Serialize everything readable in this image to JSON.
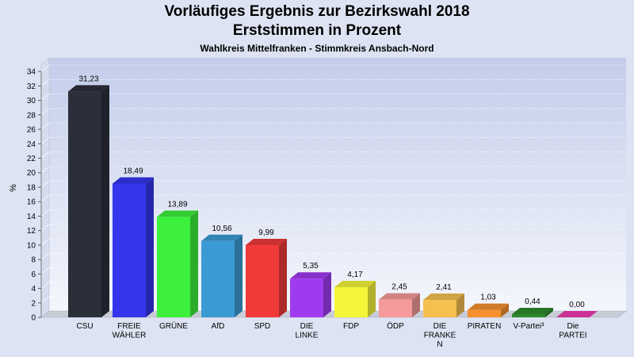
{
  "header": {
    "title_line1": "Vorläufiges Ergebnis zur Bezirkswahl 2018",
    "title_line2": "Erststimmen in Prozent",
    "subtitle": "Wahlkreis Mittelfranken - Stimmkreis Ansbach-Nord"
  },
  "chart_data": {
    "type": "bar",
    "title": "Vorläufiges Ergebnis zur Bezirkswahl 2018 Erststimmen in Prozent",
    "subtitle": "Wahlkreis Mittelfranken - Stimmkreis Ansbach-Nord",
    "xlabel": "",
    "ylabel": "%",
    "ylim": [
      0,
      35
    ],
    "yticks": [
      0,
      2,
      4,
      6,
      8,
      10,
      12,
      14,
      16,
      18,
      20,
      22,
      24,
      26,
      28,
      30,
      32,
      34
    ],
    "grid": true,
    "categories": [
      [
        "CSU"
      ],
      [
        "FREIE",
        "WÄHLER"
      ],
      [
        "GRÜNE"
      ],
      [
        "AfD"
      ],
      [
        "SPD"
      ],
      [
        "DIE",
        "LINKE"
      ],
      [
        "FDP"
      ],
      [
        "ÖDP"
      ],
      [
        "DIE",
        "FRANKE",
        "N"
      ],
      [
        "PIRATEN"
      ],
      [
        "V-Partei³"
      ],
      [
        "Die",
        "PARTEI"
      ]
    ],
    "values": [
      31.23,
      18.49,
      13.89,
      10.56,
      9.99,
      5.35,
      4.17,
      2.45,
      2.41,
      1.03,
      0.44,
      0.0
    ],
    "value_labels": [
      "31,23",
      "18,49",
      "13,89",
      "10,56",
      "9,99",
      "5,35",
      "4,17",
      "2,45",
      "2,41",
      "1,03",
      "0,44",
      "0,00"
    ],
    "colors": [
      "#2b2f3a",
      "#3535ee",
      "#3cf03c",
      "#3a9bd4",
      "#f03a3a",
      "#a03af0",
      "#f5f53a",
      "#f59a9a",
      "#f5c050",
      "#f5902e",
      "#2e8a2e",
      "#f03ab0"
    ]
  }
}
